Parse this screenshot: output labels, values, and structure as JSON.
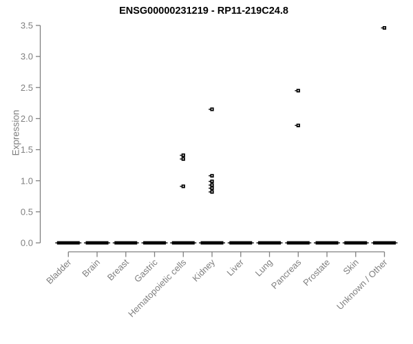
{
  "chart_data": {
    "type": "scatter",
    "title": "ENSG00000231219 - RP11-219C24.8",
    "xlabel": "",
    "ylabel": "Expression",
    "ylim": [
      0,
      3.5
    ],
    "yticks": [
      "0.0",
      "0.5",
      "1.0",
      "1.5",
      "2.0",
      "2.5",
      "3.0",
      "3.5"
    ],
    "grid": false,
    "legend": "none",
    "marker": "small-black-square-with-left-tick",
    "categories": [
      "Bladder",
      "Brain",
      "Breast",
      "Gastric",
      "Hematopoietic cells",
      "Kidney",
      "Liver",
      "Lung",
      "Pancreas",
      "Prostate",
      "Skin",
      "Unknown / Other"
    ],
    "series": [
      {
        "category": "Bladder",
        "zero_cluster": true,
        "outliers": []
      },
      {
        "category": "Brain",
        "zero_cluster": true,
        "outliers": []
      },
      {
        "category": "Breast",
        "zero_cluster": true,
        "outliers": []
      },
      {
        "category": "Gastric",
        "zero_cluster": true,
        "outliers": []
      },
      {
        "category": "Hematopoietic cells",
        "zero_cluster": true,
        "outliers": [
          1.41,
          1.35,
          0.91
        ]
      },
      {
        "category": "Kidney",
        "zero_cluster": true,
        "outliers": [
          2.15,
          1.08,
          0.99,
          0.93,
          0.88,
          0.82
        ]
      },
      {
        "category": "Liver",
        "zero_cluster": true,
        "outliers": []
      },
      {
        "category": "Lung",
        "zero_cluster": true,
        "outliers": []
      },
      {
        "category": "Pancreas",
        "zero_cluster": true,
        "outliers": [
          2.45,
          1.89
        ]
      },
      {
        "category": "Prostate",
        "zero_cluster": true,
        "outliers": []
      },
      {
        "category": "Skin",
        "zero_cluster": true,
        "outliers": []
      },
      {
        "category": "Unknown / Other",
        "zero_cluster": true,
        "outliers": [
          3.46
        ]
      }
    ],
    "colors": {
      "point": "#000000",
      "axis": "#7f7f7f",
      "tick_label": "#7f7f7f",
      "title": "#000000",
      "background": "#ffffff"
    }
  }
}
